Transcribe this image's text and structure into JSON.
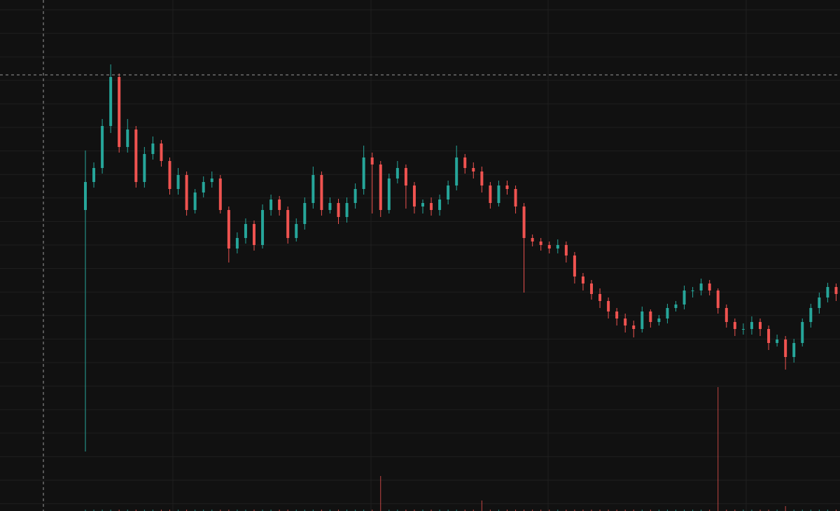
{
  "chart_data": {
    "type": "candlestick",
    "categories": [
      null,
      null,
      null,
      null,
      null,
      null,
      null,
      null,
      null,
      null,
      null,
      null,
      null,
      null,
      null,
      null,
      null,
      null,
      null,
      null,
      null,
      null,
      null,
      null,
      null,
      null,
      null,
      null,
      null,
      null,
      null,
      null,
      null,
      null,
      null,
      null,
      null,
      null,
      null,
      null,
      null,
      null,
      null,
      null,
      null,
      null,
      null,
      null,
      null,
      null,
      null,
      null,
      null,
      null,
      null,
      null,
      null,
      null,
      null,
      null,
      null,
      null,
      null,
      null,
      null,
      null,
      null,
      null,
      null,
      null,
      null,
      null,
      null,
      null,
      null,
      null,
      null,
      null,
      null,
      null,
      null,
      null,
      null,
      null,
      null,
      null,
      null,
      null,
      null,
      null
    ],
    "open": [
      430,
      470,
      490,
      550,
      620,
      520,
      545,
      470,
      510,
      525,
      500,
      460,
      480,
      430,
      455,
      470,
      475,
      430,
      375,
      390,
      410,
      380,
      430,
      445,
      430,
      390,
      410,
      440,
      480,
      430,
      440,
      420,
      440,
      460,
      505,
      495,
      430,
      475,
      490,
      465,
      435,
      440,
      430,
      445,
      465,
      505,
      490,
      485,
      465,
      440,
      465,
      460,
      435,
      390,
      385,
      380,
      375,
      380,
      365,
      335,
      325,
      310,
      300,
      285,
      275,
      265,
      260,
      285,
      270,
      275,
      290,
      295,
      315,
      315,
      325,
      315,
      290,
      270,
      260,
      260,
      270,
      260,
      240,
      245,
      220,
      240,
      270,
      290,
      305,
      320
    ],
    "high": [
      515,
      498,
      560,
      638,
      625,
      560,
      550,
      520,
      535,
      530,
      505,
      490,
      485,
      460,
      478,
      485,
      480,
      435,
      398,
      418,
      415,
      438,
      452,
      450,
      435,
      418,
      448,
      492,
      485,
      448,
      446,
      448,
      468,
      522,
      512,
      500,
      482,
      500,
      495,
      470,
      445,
      448,
      452,
      472,
      522,
      510,
      498,
      492,
      470,
      472,
      472,
      465,
      440,
      395,
      390,
      385,
      388,
      385,
      370,
      340,
      330,
      318,
      305,
      290,
      282,
      272,
      292,
      288,
      280,
      296,
      300,
      322,
      320,
      332,
      330,
      318,
      295,
      275,
      268,
      278,
      275,
      265,
      252,
      250,
      246,
      275,
      296,
      312,
      326,
      325
    ],
    "low": [
      85,
      462,
      482,
      540,
      512,
      512,
      462,
      462,
      502,
      492,
      452,
      452,
      422,
      425,
      448,
      462,
      425,
      355,
      368,
      382,
      372,
      375,
      422,
      422,
      382,
      385,
      402,
      432,
      422,
      425,
      410,
      412,
      432,
      452,
      425,
      420,
      425,
      468,
      432,
      425,
      425,
      422,
      422,
      438,
      458,
      482,
      475,
      455,
      432,
      435,
      452,
      425,
      312,
      378,
      372,
      368,
      368,
      355,
      325,
      315,
      302,
      290,
      275,
      265,
      255,
      248,
      255,
      262,
      265,
      268,
      285,
      288,
      305,
      308,
      308,
      282,
      262,
      250,
      252,
      252,
      250,
      230,
      235,
      202,
      212,
      235,
      262,
      282,
      298,
      300
    ],
    "close": [
      470,
      490,
      550,
      620,
      520,
      545,
      470,
      510,
      525,
      500,
      460,
      480,
      430,
      455,
      470,
      475,
      430,
      375,
      390,
      410,
      380,
      430,
      445,
      430,
      390,
      410,
      440,
      480,
      430,
      440,
      420,
      440,
      460,
      505,
      495,
      430,
      475,
      490,
      465,
      435,
      440,
      430,
      445,
      465,
      505,
      490,
      485,
      465,
      440,
      465,
      460,
      435,
      390,
      385,
      380,
      375,
      380,
      365,
      335,
      325,
      310,
      300,
      285,
      275,
      265,
      260,
      285,
      270,
      275,
      290,
      295,
      315,
      315,
      325,
      315,
      290,
      270,
      260,
      260,
      270,
      260,
      240,
      245,
      220,
      240,
      270,
      290,
      305,
      320,
      310
    ],
    "volume": [
      2,
      2,
      2,
      2,
      2,
      2,
      2,
      2,
      2,
      2,
      2,
      2,
      2,
      2,
      2,
      2,
      2,
      2,
      2,
      2,
      2,
      2,
      2,
      2,
      2,
      2,
      2,
      2,
      2,
      2,
      2,
      2,
      2,
      2,
      2,
      50,
      2,
      2,
      2,
      2,
      2,
      2,
      2,
      2,
      2,
      2,
      2,
      15,
      2,
      2,
      2,
      2,
      2,
      2,
      2,
      2,
      2,
      2,
      2,
      2,
      2,
      2,
      2,
      2,
      2,
      2,
      2,
      2,
      2,
      2,
      2,
      2,
      2,
      2,
      2,
      177,
      2,
      2,
      2,
      2,
      2,
      2,
      2,
      7,
      2,
      2,
      2,
      2,
      2,
      2
    ],
    "up_color": "#26a69a",
    "down_color": "#ef5350",
    "ylim": [
      0,
      730
    ],
    "y2lim": [
      0,
      730
    ],
    "grid": true
  }
}
